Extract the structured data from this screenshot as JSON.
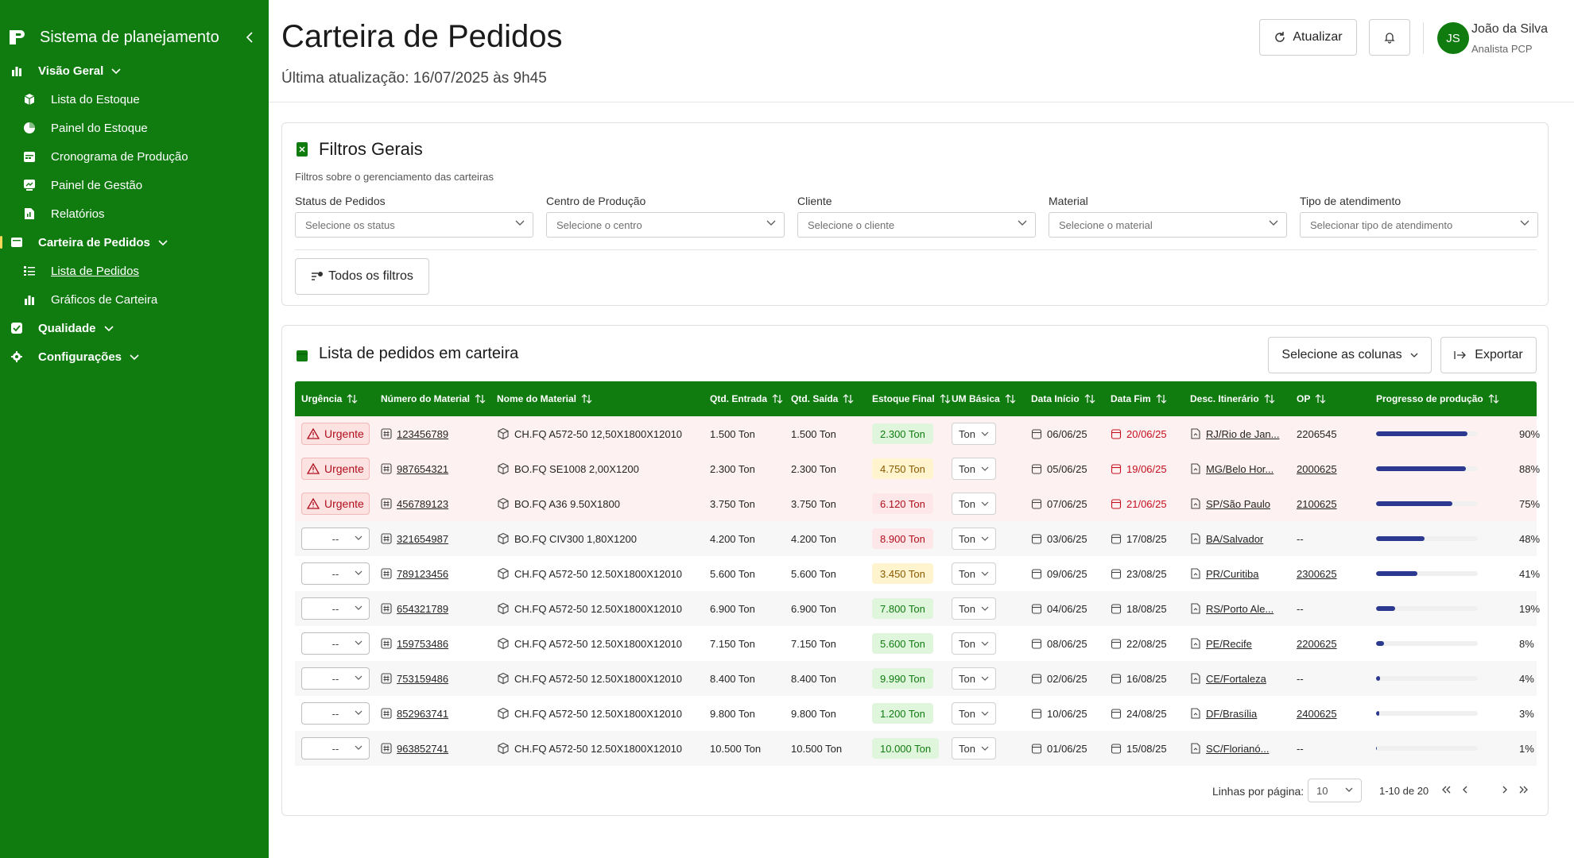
{
  "sidebar": {
    "title": "Sistema de planejamento",
    "items": [
      {
        "label": "Visão Geral",
        "type": "group"
      },
      {
        "label": "Lista do Estoque",
        "type": "child"
      },
      {
        "label": "Painel do Estoque",
        "type": "child"
      },
      {
        "label": "Cronograma de Produção",
        "type": "child"
      },
      {
        "label": "Painel de Gestão",
        "type": "child"
      },
      {
        "label": "Relatórios",
        "type": "child"
      },
      {
        "label": "Carteira de Pedidos",
        "type": "group"
      },
      {
        "label": "Lista de Pedidos",
        "type": "child"
      },
      {
        "label": "Gráficos de Carteira",
        "type": "child"
      },
      {
        "label": "Qualidade",
        "type": "group"
      },
      {
        "label": "Configurações",
        "type": "group"
      }
    ]
  },
  "header": {
    "title": "Carteira de Pedidos",
    "subtitle": "Última atualização: 16/07/2025 às 9h45",
    "refresh_label": "Atualizar",
    "user": {
      "initials": "JS",
      "name": "João da Silva",
      "role": "Analista PCP"
    }
  },
  "filters": {
    "title": "Filtros Gerais",
    "description": "Filtros sobre o gerenciamento das carteiras",
    "fields": [
      {
        "label": "Status de Pedidos",
        "placeholder": "Selecione os status"
      },
      {
        "label": "Centro de Produção",
        "placeholder": "Selecione o centro"
      },
      {
        "label": "Cliente",
        "placeholder": "Selecione o cliente"
      },
      {
        "label": "Material",
        "placeholder": "Selecione o material"
      },
      {
        "label": "Tipo de atendimento",
        "placeholder": "Selecionar tipo de atendimento"
      }
    ],
    "all_filters_label": "Todos os filtros"
  },
  "list": {
    "title": "Lista de pedidos em carteira",
    "columns_button": "Selecione as colunas",
    "export_button": "Exportar",
    "headers": [
      "Urgência",
      "Número do Material",
      "Nome do Material",
      "Qtd. Entrada",
      "Qtd. Saída",
      "Estoque Final",
      "UM Básica",
      "Data Início",
      "Data Fim",
      "Desc. Itinerário",
      "OP",
      "Progresso de produção"
    ],
    "rows": [
      {
        "urgency": "Urgente",
        "material_no": "123456789",
        "material_name": "CH.FQ A572-50 12,50X1800X12010",
        "qty_in": "1.500 Ton",
        "qty_out": "1.500 Ton",
        "stock": "2.300 Ton",
        "stock_status": "green",
        "um": "Ton",
        "start": "06/06/25",
        "end": "20/06/25",
        "end_late": true,
        "route": "RJ/Rio de Jan...",
        "op": "2206545",
        "op_link": false,
        "progress": 90,
        "progress_label": "90%"
      },
      {
        "urgency": "Urgente",
        "material_no": "987654321",
        "material_name": "BO.FQ SE1008 2,00X1200",
        "qty_in": "2.300 Ton",
        "qty_out": "2.300 Ton",
        "stock": "4.750 Ton",
        "stock_status": "yellow",
        "um": "Ton",
        "start": "05/06/25",
        "end": "19/06/25",
        "end_late": true,
        "route": "MG/Belo Hor...",
        "op": "2000625",
        "op_link": true,
        "progress": 88,
        "progress_label": "88%"
      },
      {
        "urgency": "Urgente",
        "material_no": "456789123",
        "material_name": "BO.FQ A36 9.50X1800",
        "qty_in": "3.750 Ton",
        "qty_out": "3.750 Ton",
        "stock": "6.120 Ton",
        "stock_status": "red",
        "um": "Ton",
        "start": "07/06/25",
        "end": "21/06/25",
        "end_late": true,
        "route": "SP/São Paulo",
        "op": "2100625",
        "op_link": true,
        "progress": 75,
        "progress_label": "75%"
      },
      {
        "urgency": "--",
        "material_no": "321654987",
        "material_name": "BO.FQ CIV300 1,80X1200",
        "qty_in": "4.200 Ton",
        "qty_out": "4.200 Ton",
        "stock": "8.900 Ton",
        "stock_status": "red",
        "um": "Ton",
        "start": "03/06/25",
        "end": "17/08/25",
        "end_late": false,
        "route": "BA/Salvador",
        "op": "--",
        "op_link": false,
        "progress": 48,
        "progress_label": "48%"
      },
      {
        "urgency": "--",
        "material_no": "789123456",
        "material_name": "CH.FQ A572-50 12.50X1800X12010",
        "qty_in": "5.600 Ton",
        "qty_out": "5.600 Ton",
        "stock": "3.450 Ton",
        "stock_status": "yellow",
        "um": "Ton",
        "start": "09/06/25",
        "end": "23/08/25",
        "end_late": false,
        "route": "PR/Curitiba",
        "op": "2300625",
        "op_link": true,
        "progress": 41,
        "progress_label": "41%"
      },
      {
        "urgency": "--",
        "material_no": "654321789",
        "material_name": "CH.FQ A572-50 12.50X1800X12010",
        "qty_in": "6.900 Ton",
        "qty_out": "6.900 Ton",
        "stock": "7.800 Ton",
        "stock_status": "green",
        "um": "Ton",
        "start": "04/06/25",
        "end": "18/08/25",
        "end_late": false,
        "route": "RS/Porto Ale...",
        "op": "--",
        "op_link": false,
        "progress": 19,
        "progress_label": "19%"
      },
      {
        "urgency": "--",
        "material_no": "159753486",
        "material_name": "CH.FQ A572-50 12.50X1800X12010",
        "qty_in": "7.150 Ton",
        "qty_out": "7.150 Ton",
        "stock": "5.600 Ton",
        "stock_status": "green",
        "um": "Ton",
        "start": "08/06/25",
        "end": "22/08/25",
        "end_late": false,
        "route": "PE/Recife",
        "op": "2200625",
        "op_link": true,
        "progress": 8,
        "progress_label": "8%"
      },
      {
        "urgency": "--",
        "material_no": "753159486",
        "material_name": "CH.FQ A572-50 12.50X1800X12010",
        "qty_in": "8.400 Ton",
        "qty_out": "8.400 Ton",
        "stock": "9.990 Ton",
        "stock_status": "green",
        "um": "Ton",
        "start": "02/06/25",
        "end": "16/08/25",
        "end_late": false,
        "route": "CE/Fortaleza",
        "op": "--",
        "op_link": false,
        "progress": 4,
        "progress_label": "4%"
      },
      {
        "urgency": "--",
        "material_no": "852963741",
        "material_name": "CH.FQ A572-50 12.50X1800X12010",
        "qty_in": "9.800 Ton",
        "qty_out": "9.800 Ton",
        "stock": "1.200 Ton",
        "stock_status": "green",
        "um": "Ton",
        "start": "10/06/25",
        "end": "24/08/25",
        "end_late": false,
        "route": "DF/Brasília",
        "op": "2400625",
        "op_link": true,
        "progress": 3,
        "progress_label": "3%"
      },
      {
        "urgency": "--",
        "material_no": "963852741",
        "material_name": "CH.FQ A572-50 12.50X1800X12010",
        "qty_in": "10.500 Ton",
        "qty_out": "10.500 Ton",
        "stock": "10.000 Ton",
        "stock_status": "green",
        "um": "Ton",
        "start": "01/06/25",
        "end": "15/08/25",
        "end_late": false,
        "route": "SC/Florianó...",
        "op": "--",
        "op_link": false,
        "progress": 1,
        "progress_label": "1%"
      }
    ]
  },
  "pagination": {
    "rows_per_page_label": "Linhas por página:",
    "rows_per_page": "10",
    "range": "1-10 de 20"
  },
  "colors": {
    "brand": "#107c10",
    "progress": "#2b3990",
    "urgent": "#b10e1c"
  }
}
